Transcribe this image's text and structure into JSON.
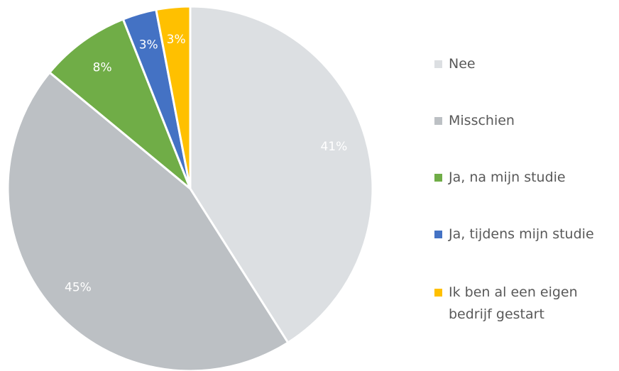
{
  "chart_data": {
    "type": "pie",
    "categories": [
      "Nee",
      "Misschien",
      "Ja, na mijn studie",
      "Ja, tijdens mijn studie",
      "Ik ben al een eigen bedrijf gestart"
    ],
    "values": [
      41,
      45,
      8,
      3,
      3
    ],
    "value_labels": [
      "41%",
      "45%",
      "8%",
      "3%",
      "3%"
    ],
    "colors": [
      "#dcdfe2",
      "#bcc0c4",
      "#70ad47",
      "#4472c4",
      "#ffc000"
    ],
    "legend": "right"
  }
}
